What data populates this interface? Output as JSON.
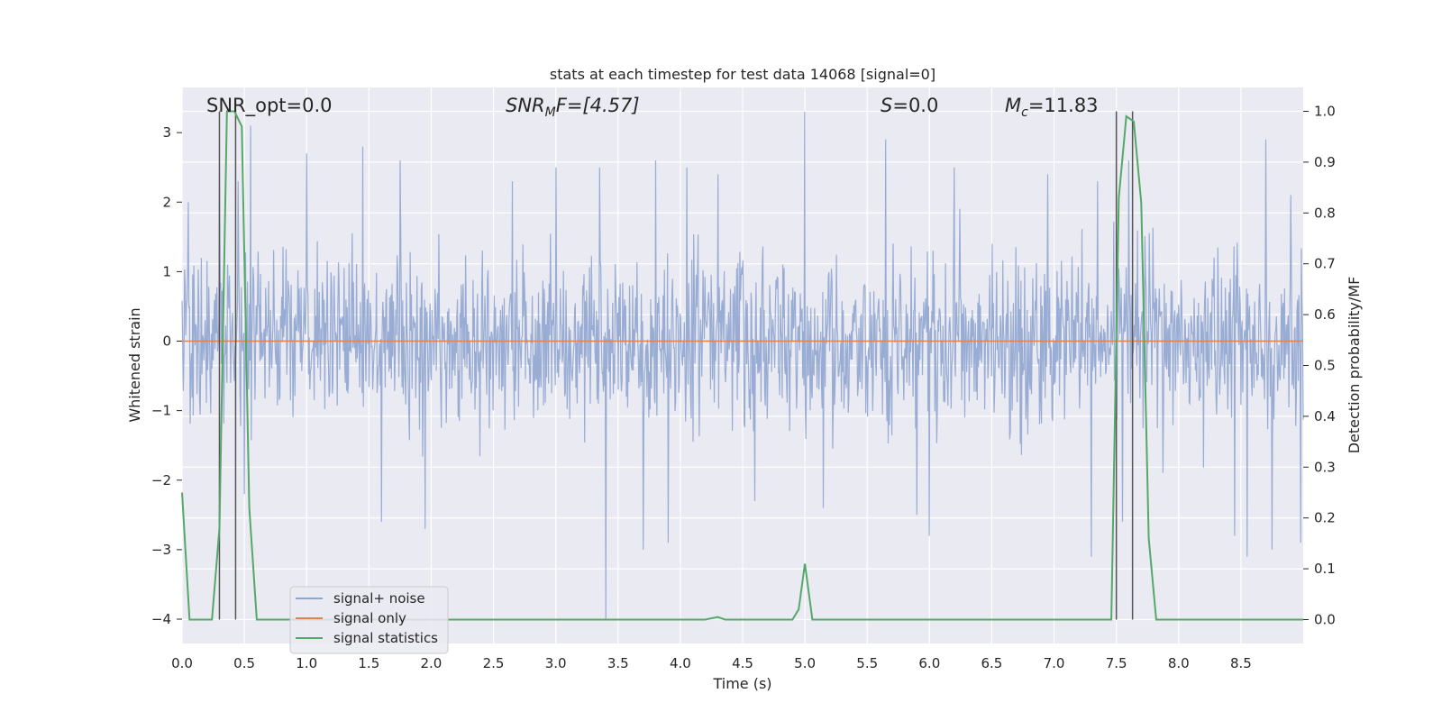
{
  "chart_data": {
    "type": "line",
    "title": "stats at each timestep for test data 14068 [signal=0]",
    "xlabel": "Time (s)",
    "ylabel": "Whitened strain",
    "y2label": "Detection probability/MF",
    "xlim": [
      0.0,
      9.0
    ],
    "ylim": [
      -4.35,
      3.65
    ],
    "y2lim": [
      -0.047,
      1.047
    ],
    "xticks": [
      "0.0",
      "0.5",
      "1.0",
      "1.5",
      "2.0",
      "2.5",
      "3.0",
      "3.5",
      "4.0",
      "4.5",
      "5.0",
      "5.5",
      "6.0",
      "6.5",
      "7.0",
      "7.5",
      "8.0",
      "8.5"
    ],
    "yticks": [
      "3",
      "2",
      "1",
      "0",
      "−1",
      "−2",
      "−3",
      "−4"
    ],
    "y2ticks": [
      "1.0",
      "0.9",
      "0.8",
      "0.7",
      "0.6",
      "0.5",
      "0.4",
      "0.3",
      "0.2",
      "0.1",
      "0.0"
    ],
    "grid": true,
    "legend_position": "lower-left",
    "annotations": {
      "snr_opt": "SNR_opt=0.0",
      "snr_mf_prefix": "SNR",
      "snr_mf_sub": "M",
      "snr_mf_suffix": "F=[4.57]",
      "s_var": "S",
      "s_value": "=0.0",
      "mc_var": "M",
      "mc_sub": "c",
      "mc_value": "=11.83"
    },
    "series": [
      {
        "name": "signal+ noise",
        "color": "#8fa5d0",
        "description": "whitened noise, amplitude approx ±1.5 with spikes to ±3.3",
        "spikes": [
          [
            0.05,
            2.0
          ],
          [
            0.3,
            2.4
          ],
          [
            0.45,
            2.3
          ],
          [
            0.55,
            3.1
          ],
          [
            1.0,
            2.7
          ],
          [
            1.45,
            2.8
          ],
          [
            1.75,
            2.6
          ],
          [
            2.65,
            2.3
          ],
          [
            3.0,
            2.5
          ],
          [
            3.35,
            2.5
          ],
          [
            3.8,
            2.6
          ],
          [
            4.05,
            2.5
          ],
          [
            4.3,
            2.4
          ],
          [
            5.0,
            3.3
          ],
          [
            5.65,
            2.9
          ],
          [
            6.2,
            2.5
          ],
          [
            6.95,
            2.4
          ],
          [
            7.35,
            2.3
          ],
          [
            7.6,
            2.6
          ],
          [
            8.55,
            2.5
          ],
          [
            8.7,
            2.9
          ],
          [
            8.9,
            2.1
          ],
          [
            0.5,
            -2.2
          ],
          [
            1.6,
            -2.6
          ],
          [
            1.95,
            -2.7
          ],
          [
            3.4,
            -4.0
          ],
          [
            3.7,
            -3.0
          ],
          [
            3.9,
            -2.9
          ],
          [
            4.6,
            -2.3
          ],
          [
            5.15,
            -2.4
          ],
          [
            5.9,
            -2.5
          ],
          [
            6.0,
            -2.8
          ],
          [
            7.3,
            -3.1
          ],
          [
            7.55,
            -2.6
          ],
          [
            8.45,
            -2.8
          ],
          [
            8.55,
            -3.1
          ],
          [
            8.75,
            -3.0
          ],
          [
            8.98,
            -2.9
          ]
        ]
      },
      {
        "name": "signal only",
        "color": "#dd8452",
        "x": [
          0.0,
          9.0
        ],
        "y": [
          0.0,
          0.0
        ]
      },
      {
        "name": "signal statistics",
        "color": "#55a868",
        "x": [
          0.0,
          0.06,
          0.12,
          0.18,
          0.24,
          0.3,
          0.36,
          0.42,
          0.48,
          0.54,
          0.6,
          0.66,
          4.2,
          4.3,
          4.36,
          4.42,
          4.9,
          4.95,
          5.0,
          5.06,
          7.4,
          7.46,
          7.52,
          7.58,
          7.64,
          7.7,
          7.76,
          7.82,
          7.88,
          7.94,
          8.5,
          9.0
        ],
        "y": [
          0.25,
          0.0,
          0.0,
          0.0,
          0.0,
          0.18,
          1.0,
          1.0,
          0.97,
          0.22,
          0.0,
          0.0,
          0.0,
          0.005,
          0.0,
          0.0,
          0.0,
          0.02,
          0.11,
          0.0,
          0.0,
          0.0,
          0.83,
          0.99,
          0.98,
          0.82,
          0.16,
          0.0,
          0.0,
          0.0,
          0.0,
          0.0
        ]
      }
    ],
    "vlines": [
      0.3,
      0.43,
      7.5,
      7.63
    ],
    "vline_color": "#555555"
  }
}
